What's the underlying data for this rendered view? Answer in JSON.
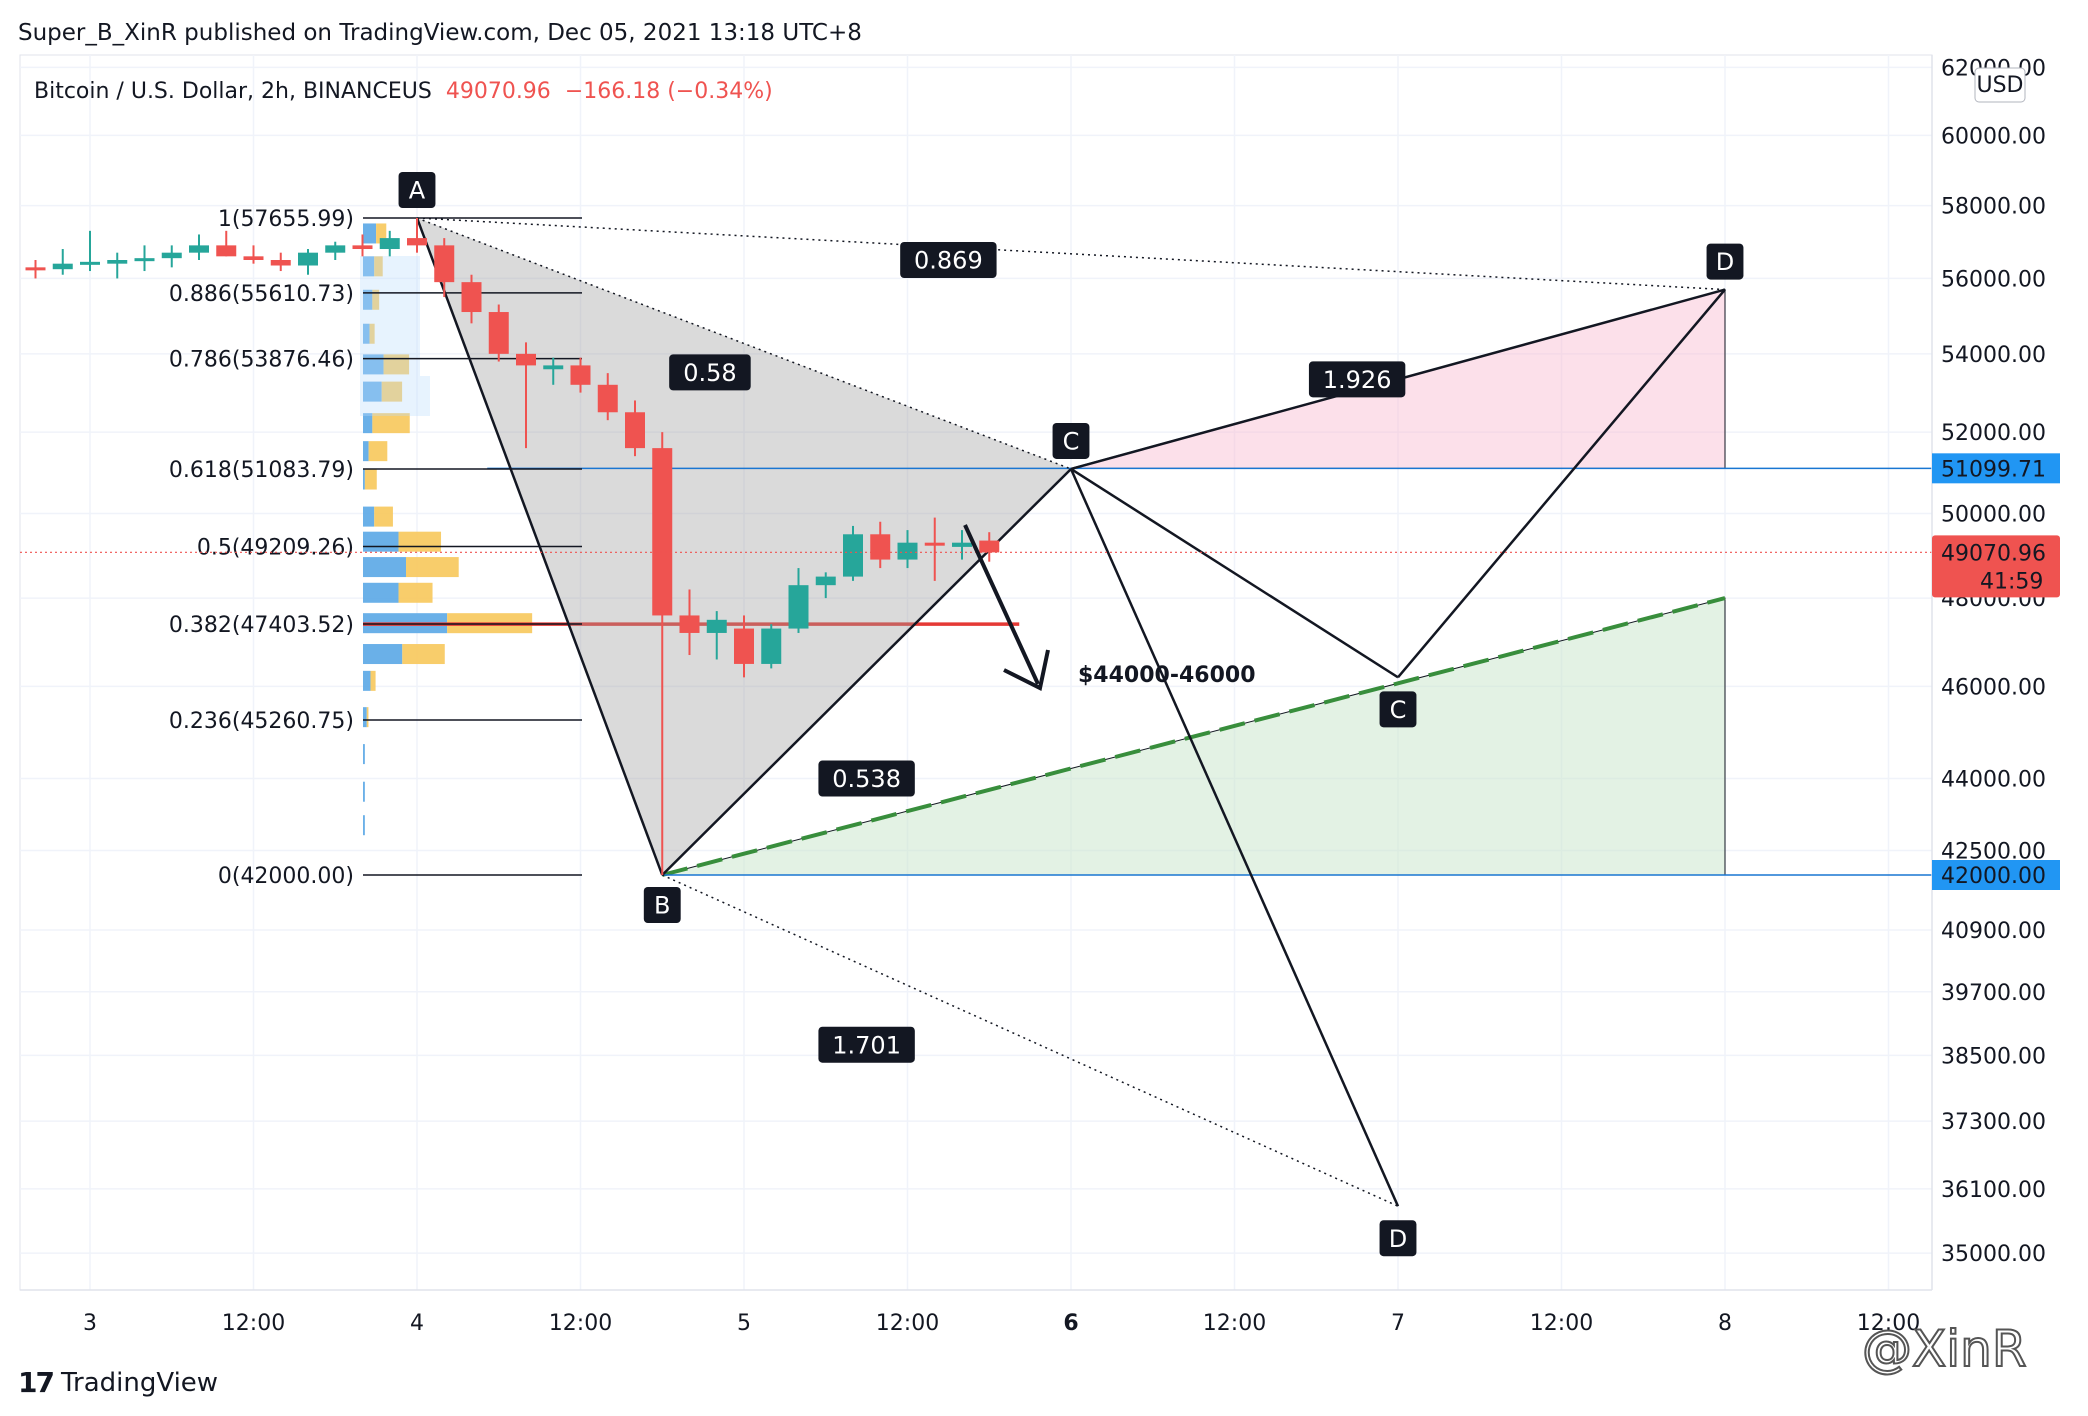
{
  "header": {
    "publisher": "Super_B_XinR published on TradingView.com, Dec 05, 2021 13:18 UTC+8"
  },
  "legend": {
    "symbol": "Bitcoin / U.S. Dollar, 2h, BINANCEUS",
    "price": "49070.96",
    "change": "−166.18 (−0.34%)",
    "change_color": "#ef5350"
  },
  "footer": {
    "brand": "TradingView",
    "watermark": "@XinR"
  },
  "colors": {
    "up": "#26a69a",
    "down": "#ef5350",
    "price_tag": "#ef5350",
    "level_tag": "#2196f3"
  },
  "chart_data": {
    "type": "candlestick",
    "currency": "USD",
    "y_ticks": [
      {
        "label": "62000.00",
        "value": 62000
      },
      {
        "label": "60000.00",
        "value": 60000
      },
      {
        "label": "58000.00",
        "value": 58000
      },
      {
        "label": "56000.00",
        "value": 56000
      },
      {
        "label": "54000.00",
        "value": 54000
      },
      {
        "label": "52000.00",
        "value": 52000
      },
      {
        "label": "50000.00",
        "value": 50000
      },
      {
        "label": "48000.00",
        "value": 48000
      },
      {
        "label": "46000.00",
        "value": 46000
      },
      {
        "label": "44000.00",
        "value": 44000
      },
      {
        "label": "42500.00",
        "value": 42500
      },
      {
        "label": "40900.00",
        "value": 40900
      },
      {
        "label": "39700.00",
        "value": 39700
      },
      {
        "label": "38500.00",
        "value": 38500
      },
      {
        "label": "37300.00",
        "value": 37300
      },
      {
        "label": "36100.00",
        "value": 36100
      },
      {
        "label": "35000.00",
        "value": 35000
      }
    ],
    "x_ticks": [
      {
        "label": "3",
        "t": 0,
        "bold": false
      },
      {
        "label": "12:00",
        "t": 12,
        "bold": false
      },
      {
        "label": "4",
        "t": 24,
        "bold": false
      },
      {
        "label": "12:00",
        "t": 36,
        "bold": false
      },
      {
        "label": "5",
        "t": 48,
        "bold": false
      },
      {
        "label": "12:00",
        "t": 60,
        "bold": false
      },
      {
        "label": "6",
        "t": 72,
        "bold": true
      },
      {
        "label": "12:00",
        "t": 84,
        "bold": false
      },
      {
        "label": "7",
        "t": 96,
        "bold": false
      },
      {
        "label": "12:00",
        "t": 108,
        "bold": false
      },
      {
        "label": "8",
        "t": 120,
        "bold": false
      },
      {
        "label": "12:00",
        "t": 132,
        "bold": false
      }
    ],
    "candles": [
      {
        "t": -4,
        "o": 56300,
        "h": 56500,
        "l": 56000,
        "c": 56250
      },
      {
        "t": -2,
        "o": 56250,
        "h": 56800,
        "l": 56100,
        "c": 56400
      },
      {
        "t": 0,
        "o": 56400,
        "h": 57300,
        "l": 56200,
        "c": 56450
      },
      {
        "t": 2,
        "o": 56400,
        "h": 56700,
        "l": 56000,
        "c": 56500
      },
      {
        "t": 4,
        "o": 56500,
        "h": 56900,
        "l": 56200,
        "c": 56550
      },
      {
        "t": 6,
        "o": 56550,
        "h": 56900,
        "l": 56300,
        "c": 56700
      },
      {
        "t": 8,
        "o": 56700,
        "h": 57200,
        "l": 56500,
        "c": 56900
      },
      {
        "t": 10,
        "o": 56900,
        "h": 57300,
        "l": 56600,
        "c": 56600
      },
      {
        "t": 12,
        "o": 56600,
        "h": 56900,
        "l": 56400,
        "c": 56500
      },
      {
        "t": 14,
        "o": 56500,
        "h": 56700,
        "l": 56200,
        "c": 56350
      },
      {
        "t": 16,
        "o": 56350,
        "h": 56800,
        "l": 56100,
        "c": 56700
      },
      {
        "t": 18,
        "o": 56700,
        "h": 57000,
        "l": 56500,
        "c": 56900
      },
      {
        "t": 20,
        "o": 56900,
        "h": 57200,
        "l": 56600,
        "c": 56800
      },
      {
        "t": 22,
        "o": 56800,
        "h": 57300,
        "l": 56600,
        "c": 57100
      },
      {
        "t": 24,
        "o": 57100,
        "h": 57656,
        "l": 56700,
        "c": 56900
      },
      {
        "t": 26,
        "o": 56900,
        "h": 57100,
        "l": 55500,
        "c": 55900
      },
      {
        "t": 28,
        "o": 55900,
        "h": 56100,
        "l": 54800,
        "c": 55100
      },
      {
        "t": 30,
        "o": 55100,
        "h": 55300,
        "l": 53800,
        "c": 54000
      },
      {
        "t": 32,
        "o": 54000,
        "h": 54300,
        "l": 51600,
        "c": 53700
      },
      {
        "t": 34,
        "o": 53600,
        "h": 53900,
        "l": 53200,
        "c": 53700
      },
      {
        "t": 36,
        "o": 53700,
        "h": 53900,
        "l": 53000,
        "c": 53200
      },
      {
        "t": 38,
        "o": 53200,
        "h": 53500,
        "l": 52300,
        "c": 52500
      },
      {
        "t": 40,
        "o": 52500,
        "h": 52800,
        "l": 51400,
        "c": 51600
      },
      {
        "t": 42,
        "o": 51600,
        "h": 52000,
        "l": 42000,
        "c": 47600
      },
      {
        "t": 44,
        "o": 47600,
        "h": 48200,
        "l": 46700,
        "c": 47200
      },
      {
        "t": 46,
        "o": 47200,
        "h": 47700,
        "l": 46600,
        "c": 47500
      },
      {
        "t": 48,
        "o": 47300,
        "h": 47600,
        "l": 46200,
        "c": 46500
      },
      {
        "t": 50,
        "o": 46500,
        "h": 47400,
        "l": 46400,
        "c": 47300
      },
      {
        "t": 52,
        "o": 47300,
        "h": 48700,
        "l": 47200,
        "c": 48300
      },
      {
        "t": 54,
        "o": 48300,
        "h": 48600,
        "l": 48000,
        "c": 48500
      },
      {
        "t": 56,
        "o": 48500,
        "h": 49700,
        "l": 48400,
        "c": 49500
      },
      {
        "t": 58,
        "o": 49500,
        "h": 49800,
        "l": 48700,
        "c": 48900
      },
      {
        "t": 60,
        "o": 48900,
        "h": 49600,
        "l": 48700,
        "c": 49300
      },
      {
        "t": 62,
        "o": 49300,
        "h": 49900,
        "l": 48400,
        "c": 49250
      },
      {
        "t": 64,
        "o": 49200,
        "h": 49600,
        "l": 48900,
        "c": 49300
      },
      {
        "t": 66,
        "o": 49350,
        "h": 49550,
        "l": 48850,
        "c": 49070
      }
    ],
    "fib_levels": [
      {
        "label": "1(57655.99)",
        "value": 57655.99
      },
      {
        "label": "0.886(55610.73)",
        "value": 55610.73
      },
      {
        "label": "0.786(53876.46)",
        "value": 53876.46
      },
      {
        "label": "0.618(51083.79)",
        "value": 51083.79
      },
      {
        "label": "0.5(49209.26)",
        "value": 49209.26
      },
      {
        "label": "0.382(47403.52)",
        "value": 47403.52
      },
      {
        "label": "0.236(45260.75)",
        "value": 45260.75
      },
      {
        "label": "0(42000.00)",
        "value": 42000
      }
    ],
    "pattern_points": [
      {
        "label": "A",
        "t": 24,
        "value": 57656
      },
      {
        "label": "B",
        "t": 42,
        "value": 42000
      },
      {
        "label": "C",
        "t": 72,
        "value": 51084
      },
      {
        "label": "D",
        "t": 120,
        "value": 55700
      }
    ],
    "ratios": [
      {
        "label": "0.869",
        "t": 63,
        "value": 56500
      },
      {
        "label": "0.58",
        "t": 45.5,
        "value": 53520
      },
      {
        "label": "1.926",
        "t": 93,
        "value": 53340
      },
      {
        "label": "0.538",
        "t": 57,
        "value": 44000
      },
      {
        "label": "1.701",
        "t": 57,
        "value": 38700
      }
    ],
    "projection": {
      "c_point": {
        "label": "C",
        "t": 96,
        "value": 46200
      },
      "d_point": {
        "label": "D",
        "t": 96,
        "value": 35800
      },
      "target_text": "$44000-46000"
    },
    "price_tags": [
      {
        "label": "51099.71",
        "value": 51099.71,
        "color": "#2196f3"
      },
      {
        "label": "42000.00",
        "value": 42000,
        "color": "#2196f3"
      }
    ],
    "last_price": {
      "label": "49070.96",
      "countdown": "41:59",
      "value": 49070.96
    },
    "volume_profile": [
      {
        "value": 57200,
        "up": 0.14,
        "down": 0.12
      },
      {
        "value": 56300,
        "up": 0.12,
        "down": 0.1
      },
      {
        "value": 55400,
        "up": 0.1,
        "down": 0.08
      },
      {
        "value": 54500,
        "up": 0.07,
        "down": 0.06
      },
      {
        "value": 53700,
        "up": 0.22,
        "down": 0.3
      },
      {
        "value": 53000,
        "up": 0.2,
        "down": 0.24
      },
      {
        "value": 52200,
        "up": 0.1,
        "down": 0.44
      },
      {
        "value": 51500,
        "up": 0.06,
        "down": 0.22
      },
      {
        "value": 50800,
        "up": 0.02,
        "down": 0.14
      },
      {
        "value": 49900,
        "up": 0.12,
        "down": 0.22
      },
      {
        "value": 49300,
        "up": 0.38,
        "down": 0.5
      },
      {
        "value": 48700,
        "up": 0.46,
        "down": 0.62
      },
      {
        "value": 48100,
        "up": 0.38,
        "down": 0.4
      },
      {
        "value": 47400,
        "up": 0.9,
        "down": 1.0
      },
      {
        "value": 46700,
        "up": 0.42,
        "down": 0.5
      },
      {
        "value": 46100,
        "up": 0.08,
        "down": 0.06
      },
      {
        "value": 45300,
        "up": 0.04,
        "down": 0.02
      },
      {
        "value": 44500,
        "up": 0.02,
        "down": 0.0
      },
      {
        "value": 43700,
        "up": 0.02,
        "down": 0.0
      },
      {
        "value": 43000,
        "up": 0.02,
        "down": 0.0
      }
    ],
    "poc_value": 47400
  }
}
